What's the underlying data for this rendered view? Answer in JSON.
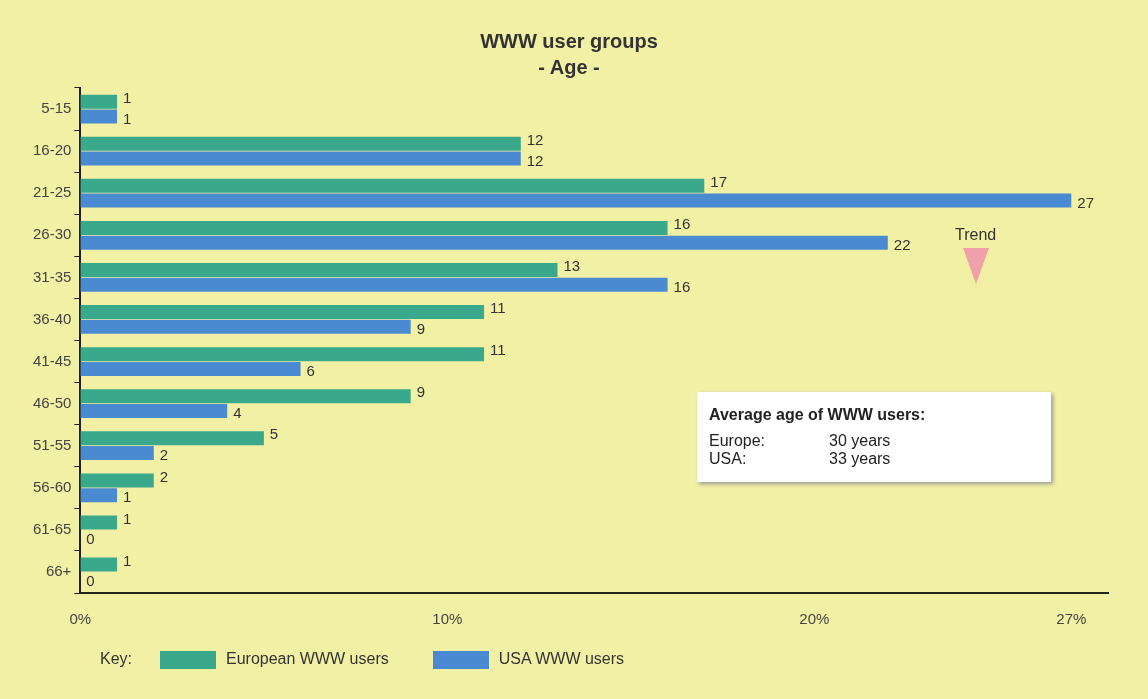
{
  "chart_data": {
    "type": "bar",
    "orientation": "horizontal",
    "title": "WWW user groups",
    "subtitle": "- Age -",
    "categories": [
      "5-15",
      "16-20",
      "21-25",
      "26-30",
      "31-35",
      "36-40",
      "41-45",
      "46-50",
      "51-55",
      "56-60",
      "61-65",
      "66+"
    ],
    "series": [
      {
        "name": "European WWW users",
        "color": "#3aa88a",
        "values": [
          1,
          12,
          17,
          16,
          13,
          11,
          11,
          9,
          5,
          2,
          1,
          1
        ]
      },
      {
        "name": "USA WWW users",
        "color": "#4a8ad0",
        "values": [
          1,
          12,
          27,
          22,
          16,
          9,
          6,
          4,
          2,
          1,
          0,
          0
        ]
      }
    ],
    "xlim": [
      0,
      28
    ],
    "xticks": [
      {
        "value": 0,
        "label": "0%"
      },
      {
        "value": 10,
        "label": "10%"
      },
      {
        "value": 20,
        "label": "20%"
      },
      {
        "value": 27,
        "label": "27%"
      }
    ],
    "data_labels": true,
    "grid": false,
    "legend": "bottom left",
    "legend_title": "Key:",
    "annotations": [
      "Trend",
      "Average age of WWW users:",
      "Europe:",
      "30 years",
      "USA:",
      "33 years"
    ]
  }
}
